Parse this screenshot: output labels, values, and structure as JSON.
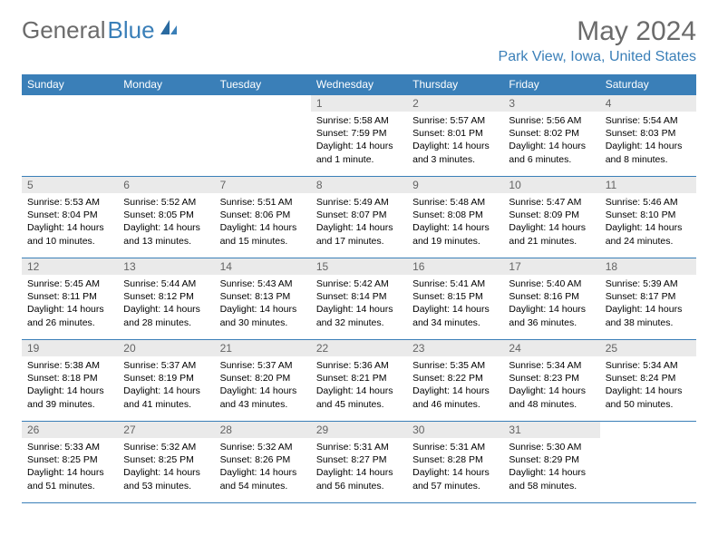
{
  "logo": {
    "part1": "General",
    "part2": "Blue"
  },
  "title": "May 2024",
  "location": "Park View, Iowa, United States",
  "dayNames": [
    "Sunday",
    "Monday",
    "Tuesday",
    "Wednesday",
    "Thursday",
    "Friday",
    "Saturday"
  ],
  "colors": {
    "header_bg": "#3a7fb8",
    "daynum_bg": "#eaeaea",
    "border": "#3a7fb8",
    "title_color": "#6b6b6b"
  },
  "weeks": [
    [
      null,
      null,
      null,
      {
        "d": "1",
        "sr": "5:58 AM",
        "ss": "7:59 PM",
        "dl": "14 hours and 1 minute."
      },
      {
        "d": "2",
        "sr": "5:57 AM",
        "ss": "8:01 PM",
        "dl": "14 hours and 3 minutes."
      },
      {
        "d": "3",
        "sr": "5:56 AM",
        "ss": "8:02 PM",
        "dl": "14 hours and 6 minutes."
      },
      {
        "d": "4",
        "sr": "5:54 AM",
        "ss": "8:03 PM",
        "dl": "14 hours and 8 minutes."
      }
    ],
    [
      {
        "d": "5",
        "sr": "5:53 AM",
        "ss": "8:04 PM",
        "dl": "14 hours and 10 minutes."
      },
      {
        "d": "6",
        "sr": "5:52 AM",
        "ss": "8:05 PM",
        "dl": "14 hours and 13 minutes."
      },
      {
        "d": "7",
        "sr": "5:51 AM",
        "ss": "8:06 PM",
        "dl": "14 hours and 15 minutes."
      },
      {
        "d": "8",
        "sr": "5:49 AM",
        "ss": "8:07 PM",
        "dl": "14 hours and 17 minutes."
      },
      {
        "d": "9",
        "sr": "5:48 AM",
        "ss": "8:08 PM",
        "dl": "14 hours and 19 minutes."
      },
      {
        "d": "10",
        "sr": "5:47 AM",
        "ss": "8:09 PM",
        "dl": "14 hours and 21 minutes."
      },
      {
        "d": "11",
        "sr": "5:46 AM",
        "ss": "8:10 PM",
        "dl": "14 hours and 24 minutes."
      }
    ],
    [
      {
        "d": "12",
        "sr": "5:45 AM",
        "ss": "8:11 PM",
        "dl": "14 hours and 26 minutes."
      },
      {
        "d": "13",
        "sr": "5:44 AM",
        "ss": "8:12 PM",
        "dl": "14 hours and 28 minutes."
      },
      {
        "d": "14",
        "sr": "5:43 AM",
        "ss": "8:13 PM",
        "dl": "14 hours and 30 minutes."
      },
      {
        "d": "15",
        "sr": "5:42 AM",
        "ss": "8:14 PM",
        "dl": "14 hours and 32 minutes."
      },
      {
        "d": "16",
        "sr": "5:41 AM",
        "ss": "8:15 PM",
        "dl": "14 hours and 34 minutes."
      },
      {
        "d": "17",
        "sr": "5:40 AM",
        "ss": "8:16 PM",
        "dl": "14 hours and 36 minutes."
      },
      {
        "d": "18",
        "sr": "5:39 AM",
        "ss": "8:17 PM",
        "dl": "14 hours and 38 minutes."
      }
    ],
    [
      {
        "d": "19",
        "sr": "5:38 AM",
        "ss": "8:18 PM",
        "dl": "14 hours and 39 minutes."
      },
      {
        "d": "20",
        "sr": "5:37 AM",
        "ss": "8:19 PM",
        "dl": "14 hours and 41 minutes."
      },
      {
        "d": "21",
        "sr": "5:37 AM",
        "ss": "8:20 PM",
        "dl": "14 hours and 43 minutes."
      },
      {
        "d": "22",
        "sr": "5:36 AM",
        "ss": "8:21 PM",
        "dl": "14 hours and 45 minutes."
      },
      {
        "d": "23",
        "sr": "5:35 AM",
        "ss": "8:22 PM",
        "dl": "14 hours and 46 minutes."
      },
      {
        "d": "24",
        "sr": "5:34 AM",
        "ss": "8:23 PM",
        "dl": "14 hours and 48 minutes."
      },
      {
        "d": "25",
        "sr": "5:34 AM",
        "ss": "8:24 PM",
        "dl": "14 hours and 50 minutes."
      }
    ],
    [
      {
        "d": "26",
        "sr": "5:33 AM",
        "ss": "8:25 PM",
        "dl": "14 hours and 51 minutes."
      },
      {
        "d": "27",
        "sr": "5:32 AM",
        "ss": "8:25 PM",
        "dl": "14 hours and 53 minutes."
      },
      {
        "d": "28",
        "sr": "5:32 AM",
        "ss": "8:26 PM",
        "dl": "14 hours and 54 minutes."
      },
      {
        "d": "29",
        "sr": "5:31 AM",
        "ss": "8:27 PM",
        "dl": "14 hours and 56 minutes."
      },
      {
        "d": "30",
        "sr": "5:31 AM",
        "ss": "8:28 PM",
        "dl": "14 hours and 57 minutes."
      },
      {
        "d": "31",
        "sr": "5:30 AM",
        "ss": "8:29 PM",
        "dl": "14 hours and 58 minutes."
      },
      null
    ]
  ]
}
